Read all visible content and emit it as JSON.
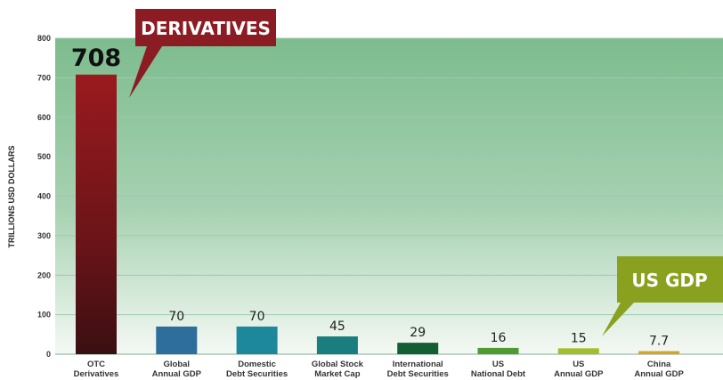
{
  "chart_data": {
    "type": "bar",
    "ylabel": "TRILLIONS USD DOLLARS",
    "ylim": [
      0,
      800
    ],
    "yticks": [
      0,
      100,
      200,
      300,
      400,
      500,
      600,
      700,
      800
    ],
    "grid": true,
    "categories": [
      [
        "OTC",
        "Derivatives"
      ],
      [
        "Global",
        "Annual GDP"
      ],
      [
        "Domestic",
        "Debt Securities"
      ],
      [
        "Global Stock",
        "Market Cap"
      ],
      [
        "International",
        "Debt Securities"
      ],
      [
        "US",
        "National Debt"
      ],
      [
        "US",
        "Annual GDP"
      ],
      [
        "China",
        "Annual GDP"
      ]
    ],
    "values": [
      708,
      70,
      70,
      45,
      29,
      16,
      15,
      7.7
    ],
    "value_labels": [
      "708",
      "70",
      "70",
      "45",
      "29",
      "16",
      "15",
      "7.7"
    ],
    "bar_colors": [
      "#8e1a1f",
      "#2d6e9c",
      "#1d879b",
      "#1a7d7e",
      "#126032",
      "#4f9a33",
      "#a3be2c",
      "#d6a227"
    ],
    "callouts": [
      {
        "text": "DERIVATIVES",
        "color": "#8b1c24",
        "target_index": 0
      },
      {
        "text": "US GDP",
        "color": "#8aa11f",
        "target_index": 6
      }
    ]
  },
  "colors": {
    "plot_top": "#7dbc8e",
    "plot_bottom": "#f4f9f4",
    "gridline": "#9ec9b4"
  }
}
